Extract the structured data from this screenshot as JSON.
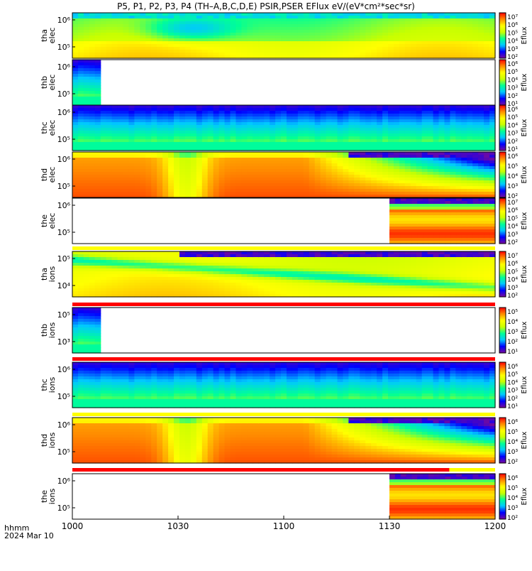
{
  "title": "P5, P1, P2, P3, P4 (TH–A,B,C,D,E) PSIR,PSER EFlux eV/(eV*cm²*sec*sr)",
  "footer": {
    "time_label": "hhmm",
    "date_label": "2024 Mar 10"
  },
  "colors": {
    "colormap": [
      "#7a0a9a",
      "#0000ff",
      "#00c8ff",
      "#00ff96",
      "#c8ff00",
      "#ffff00",
      "#ff8c00",
      "#ff0000"
    ],
    "fill_data_gap": "#ffffff",
    "mode_bar_yellow": "#ffff00",
    "mode_bar_red": "#ff0000"
  },
  "chart_data": {
    "type": "heatmap",
    "x_ticks": [
      "1000",
      "1030",
      "1100",
      "1130",
      "1200"
    ],
    "xlim": [
      "10:00",
      "12:00"
    ],
    "y_scale": "log",
    "panels": [
      {
        "probe": "tha",
        "species": "elec",
        "y_ticks": [
          "10⁶",
          "10⁵"
        ],
        "cb_ticks": [
          "10⁷",
          "10⁶",
          "10⁵",
          "10⁴",
          "10³",
          "10²"
        ],
        "cb_label": "Eflux",
        "data_end": "12:00",
        "pattern": "elec_a"
      },
      {
        "probe": "thb",
        "species": "elec",
        "y_ticks": [
          "10⁶",
          "10⁵"
        ],
        "cb_ticks": [
          "10⁶",
          "10⁵",
          "10⁴",
          "10³",
          "10²",
          "10¹"
        ],
        "cb_label": "Eflux",
        "data_end": "10:08",
        "pattern": "cold"
      },
      {
        "probe": "thc",
        "species": "elec",
        "y_ticks": [
          "10⁶",
          "10⁵"
        ],
        "cb_ticks": [
          "10⁶",
          "10⁵",
          "10⁴",
          "10³",
          "10²",
          "10¹"
        ],
        "cb_label": "Eflux",
        "data_end": "12:00",
        "pattern": "cold"
      },
      {
        "probe": "thd",
        "species": "elec",
        "y_ticks": [
          "10⁶",
          "10⁵"
        ],
        "cb_ticks": [
          "10⁶",
          "10⁵",
          "10⁴",
          "10³",
          "10²"
        ],
        "cb_label": "Eflux",
        "data_end": "12:00",
        "pattern": "hot"
      },
      {
        "probe": "the",
        "species": "elec",
        "y_ticks": [
          "10⁶",
          "10⁵"
        ],
        "cb_ticks": [
          "10⁷",
          "10⁶",
          "10⁵",
          "10⁴",
          "10³",
          "10²"
        ],
        "cb_label": "Eflux",
        "data_start": "11:30",
        "data_end": "12:00",
        "pattern": "hot_late"
      },
      {
        "probe": "tha",
        "species": "ions",
        "y_ticks": [
          "10⁵",
          "10⁴"
        ],
        "cb_ticks": [
          "10⁷",
          "10⁶",
          "10⁵",
          "10⁴",
          "10³",
          "10²"
        ],
        "cb_label": "Eflux",
        "data_end": "12:00",
        "pattern": "ions_a"
      },
      {
        "probe": "thb",
        "species": "ions",
        "y_ticks": [
          "10⁵",
          "10³"
        ],
        "cb_ticks": [
          "10⁵",
          "10⁴",
          "10³",
          "10²",
          "10¹"
        ],
        "cb_label": "Eflux",
        "data_end": "10:08",
        "pattern": "cold"
      },
      {
        "probe": "thc",
        "species": "ions",
        "y_ticks": [
          "10⁶",
          "10⁵"
        ],
        "cb_ticks": [
          "10⁶",
          "10⁵",
          "10⁴",
          "10³",
          "10²",
          "10¹"
        ],
        "cb_label": "Eflux",
        "data_end": "12:00",
        "pattern": "cold"
      },
      {
        "probe": "thd",
        "species": "ions",
        "y_ticks": [
          "10⁶",
          "10⁵"
        ],
        "cb_ticks": [
          "10⁶",
          "10⁵",
          "10⁴",
          "10³",
          "10²"
        ],
        "cb_label": "Eflux",
        "data_end": "12:00",
        "pattern": "hot"
      },
      {
        "probe": "the",
        "species": "ions",
        "y_ticks": [
          "10⁶",
          "10⁵"
        ],
        "cb_ticks": [
          "10⁶",
          "10⁵",
          "10⁴",
          "10³",
          "10²"
        ],
        "cb_label": "Eflux",
        "data_start": "11:30",
        "data_end": "12:00",
        "pattern": "hot_late"
      }
    ],
    "mode_bars": [
      {
        "after_panel": 4,
        "color": "yellow",
        "start": "10:00",
        "end": "12:00"
      },
      {
        "after_panel": 5,
        "color": "red",
        "start": "10:00",
        "end": "12:00"
      },
      {
        "after_panel": 6,
        "color": "red",
        "start": "10:00",
        "end": "12:00"
      },
      {
        "after_panel": 7,
        "color": "yellow",
        "start": "10:00",
        "end": "12:00"
      },
      {
        "after_panel": 8,
        "color": "red",
        "start": "10:00",
        "end": "11:47"
      },
      {
        "after_panel": 8,
        "color": "yellow",
        "start": "11:47",
        "end": "12:00"
      }
    ]
  }
}
